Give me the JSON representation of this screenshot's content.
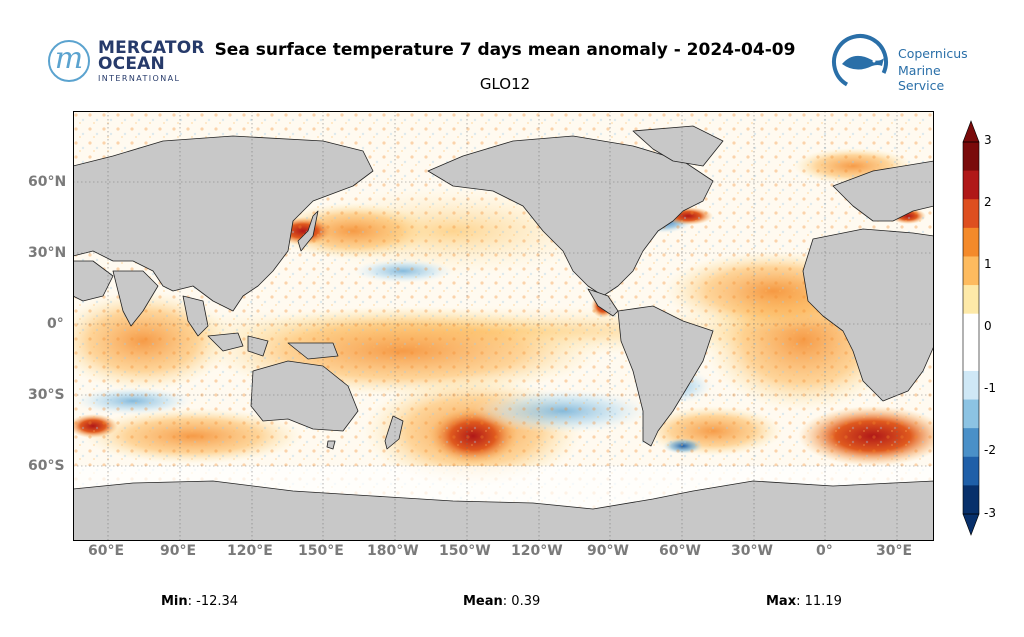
{
  "title": "Sea surface temperature 7 days mean anomaly - 2024-04-09",
  "subtitle": "GLO12",
  "logos": {
    "mercator": {
      "line1": "MERCATOR",
      "line2": "OCEAN",
      "line3": "INTERNATIONAL",
      "mark": "m"
    },
    "copernicus": {
      "line1": "Copernicus",
      "line2": "Marine Service"
    }
  },
  "map": {
    "projection": "plate-carree",
    "lon_range": [
      45,
      50
    ],
    "lat_range": [
      -82,
      90
    ],
    "land_color": "#c8c8c8",
    "grid": true,
    "lon_ticks": [
      "60°E",
      "90°E",
      "120°E",
      "150°E",
      "180°W",
      "150°W",
      "120°W",
      "90°W",
      "60°W",
      "30°W",
      "0°",
      "30°E"
    ],
    "lat_ticks": [
      "60°N",
      "30°N",
      "0°",
      "30°S",
      "60°S"
    ]
  },
  "colorbar": {
    "min": -3,
    "max": 3,
    "extend": "both",
    "ticks": [
      "3",
      "2",
      "1",
      "0",
      "-1",
      "-2",
      "-3"
    ],
    "colors": [
      "#08306b",
      "#1f5fa8",
      "#4a90c8",
      "#8cc3e3",
      "#cfe8f6",
      "#ffffff",
      "#ffffff",
      "#fde9a8",
      "#fdbb5f",
      "#f48a2a",
      "#de4f1f",
      "#b01818",
      "#7a0b0b"
    ]
  },
  "stats": {
    "min_label": "Min",
    "min_value": "-12.34",
    "mean_label": "Mean",
    "mean_value": "0.39",
    "max_label": "Max",
    "max_value": "11.19"
  }
}
